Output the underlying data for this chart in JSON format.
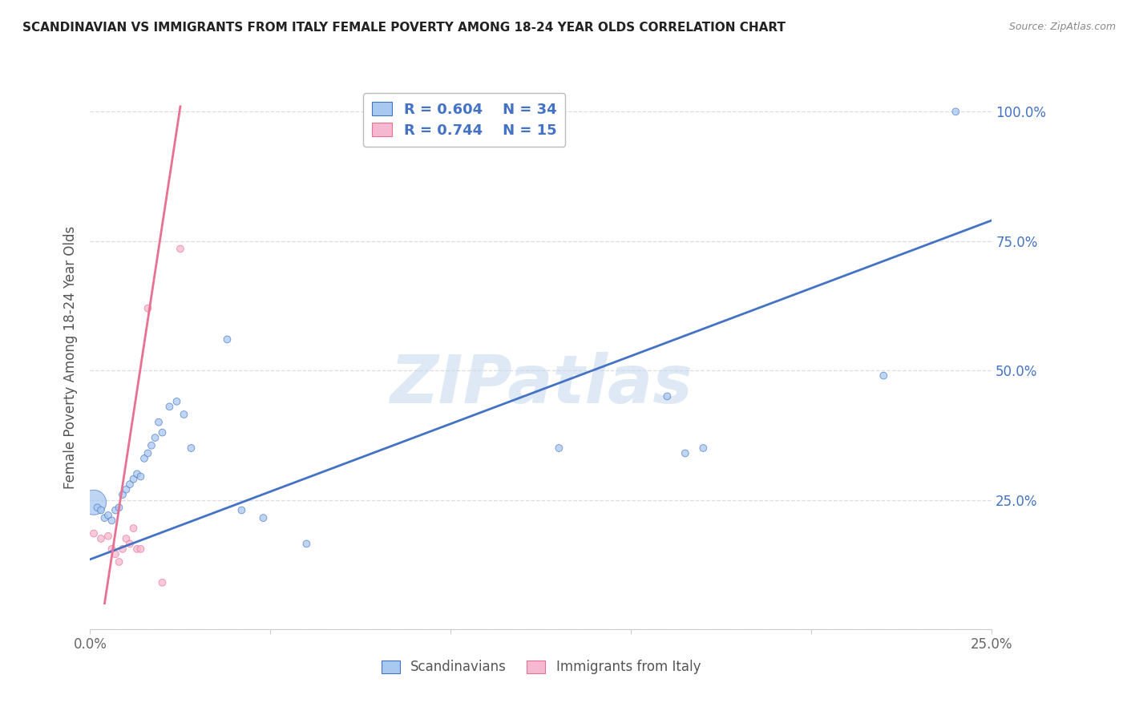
{
  "title": "SCANDINAVIAN VS IMMIGRANTS FROM ITALY FEMALE POVERTY AMONG 18-24 YEAR OLDS CORRELATION CHART",
  "source": "Source: ZipAtlas.com",
  "ylabel": "Female Poverty Among 18-24 Year Olds",
  "xlim": [
    0.0,
    0.25
  ],
  "ylim": [
    0.0,
    1.05
  ],
  "yticks": [
    0.0,
    0.25,
    0.5,
    0.75,
    1.0
  ],
  "ytick_labels": [
    "",
    "25.0%",
    "50.0%",
    "75.0%",
    "100.0%"
  ],
  "xticks": [
    0.0,
    0.05,
    0.1,
    0.15,
    0.2,
    0.25
  ],
  "xtick_labels": [
    "0.0%",
    "",
    "",
    "",
    "",
    "25.0%"
  ],
  "blue_color": "#A8C8F0",
  "pink_color": "#F5B8D0",
  "blue_line_color": "#4472C4",
  "pink_line_color": "#E87090",
  "background_color": "#FFFFFF",
  "watermark": "ZIPatlas",
  "scandinavians": {
    "x": [
      0.001,
      0.002,
      0.003,
      0.004,
      0.005,
      0.006,
      0.007,
      0.008,
      0.009,
      0.01,
      0.011,
      0.012,
      0.013,
      0.014,
      0.015,
      0.016,
      0.017,
      0.018,
      0.019,
      0.02,
      0.022,
      0.024,
      0.026,
      0.028,
      0.038,
      0.042,
      0.048,
      0.06,
      0.13,
      0.16,
      0.165,
      0.17,
      0.22,
      0.24
    ],
    "y": [
      0.245,
      0.235,
      0.23,
      0.215,
      0.22,
      0.21,
      0.23,
      0.235,
      0.26,
      0.27,
      0.28,
      0.29,
      0.3,
      0.295,
      0.33,
      0.34,
      0.355,
      0.37,
      0.4,
      0.38,
      0.43,
      0.44,
      0.415,
      0.35,
      0.56,
      0.23,
      0.215,
      0.165,
      0.35,
      0.45,
      0.34,
      0.35,
      0.49,
      1.0
    ],
    "size": [
      500,
      40,
      40,
      40,
      40,
      40,
      40,
      40,
      40,
      40,
      40,
      40,
      40,
      40,
      40,
      40,
      40,
      40,
      40,
      40,
      40,
      40,
      40,
      40,
      40,
      40,
      40,
      40,
      40,
      40,
      40,
      40,
      40,
      40
    ]
  },
  "italy": {
    "x": [
      0.001,
      0.003,
      0.005,
      0.006,
      0.007,
      0.008,
      0.009,
      0.01,
      0.011,
      0.012,
      0.013,
      0.014,
      0.016,
      0.02,
      0.025
    ],
    "y": [
      0.185,
      0.175,
      0.18,
      0.155,
      0.145,
      0.13,
      0.155,
      0.175,
      0.165,
      0.195,
      0.155,
      0.155,
      0.62,
      0.09,
      0.735
    ],
    "size": [
      40,
      40,
      40,
      40,
      40,
      40,
      40,
      40,
      40,
      40,
      40,
      40,
      40,
      40,
      40
    ]
  },
  "blue_line_x": [
    0.0,
    0.25
  ],
  "blue_line_y": [
    0.135,
    0.79
  ],
  "pink_line_x": [
    0.004,
    0.025
  ],
  "pink_line_y": [
    0.05,
    1.01
  ],
  "grid_color": "#DDDDDD",
  "tick_color": "#999999"
}
